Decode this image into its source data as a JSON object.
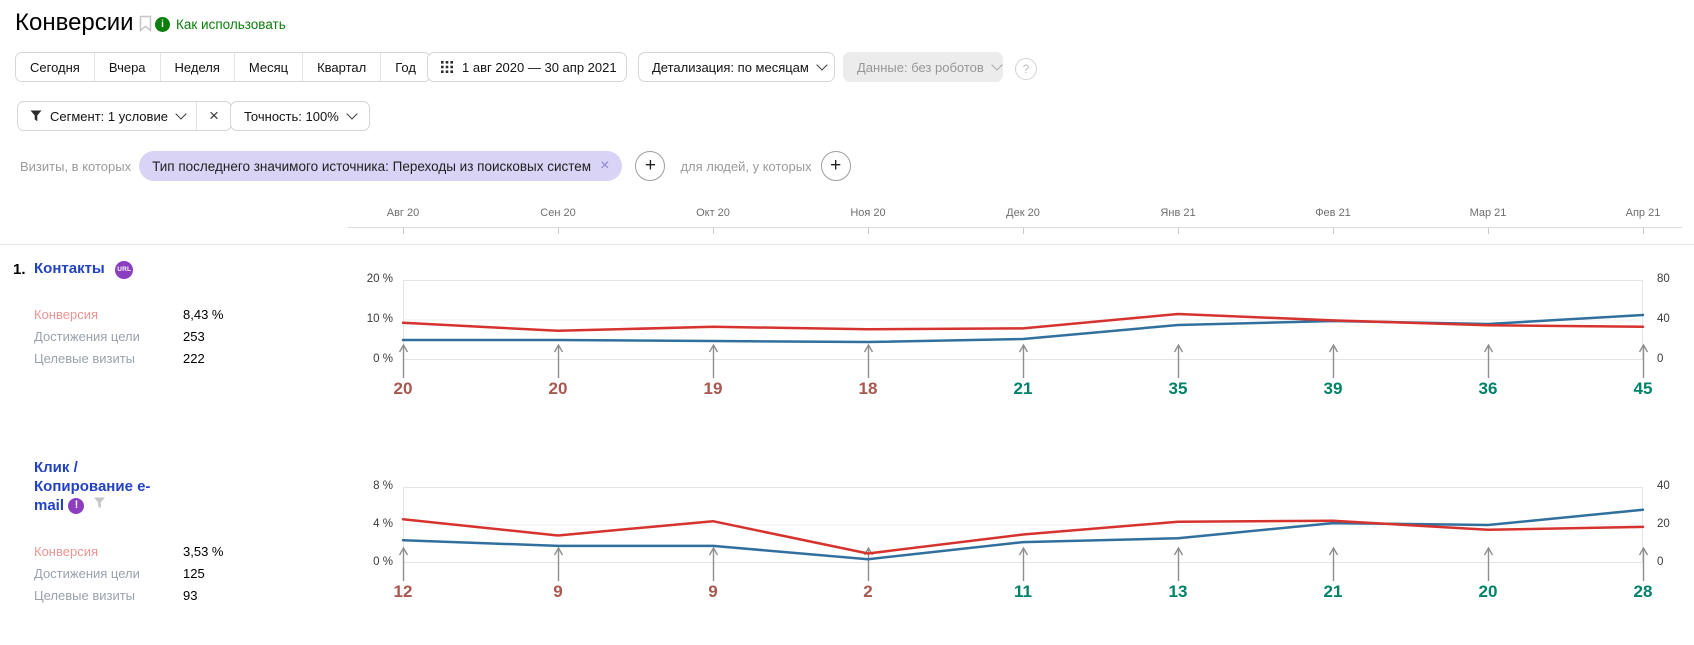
{
  "page": {
    "title": "Конверсии",
    "help_link": "Как использовать"
  },
  "toolbar": {
    "periods": [
      "Сегодня",
      "Вчера",
      "Неделя",
      "Месяц",
      "Квартал",
      "Год"
    ],
    "date_range": "1 авг 2020 — 30 апр 2021",
    "detail": "Детализация: по месяцам",
    "data_mode": "Данные: без роботов",
    "help_mark": "?",
    "segment": "Сегмент: 1 условие",
    "accuracy": "Точность: 100%"
  },
  "filters": {
    "visits_label": "Визиты, в которых",
    "chip": "Тип последнего значимого источника: Переходы из поисковых систем",
    "people_label": "для людей, у которых",
    "add_symbol": "+"
  },
  "goals": [
    {
      "number": "1.",
      "name": "Контакты",
      "badge": "URL",
      "stats": [
        {
          "label": "Конверсия",
          "value": "8,43 %"
        },
        {
          "label": "Достижения цели",
          "value": "253"
        },
        {
          "label": "Целевые визиты",
          "value": "222"
        }
      ]
    },
    {
      "number": "",
      "name": "Клик / Копирование e-mail",
      "badge": "!",
      "stats": [
        {
          "label": "Конверсия",
          "value": "3,53 %"
        },
        {
          "label": "Достижения цели",
          "value": "125"
        },
        {
          "label": "Целевые визиты",
          "value": "93"
        }
      ]
    }
  ],
  "colors": {
    "label_down": "#a8584e",
    "label_up": "#008269",
    "line_red": "#d6332e",
    "line_blue": "#31709e",
    "link_blue": "#2342c0",
    "badge_purple": "#8b3fc0",
    "accent_green": "#0b7e0b",
    "chip_bg": "#d9d4f6",
    "pink_label": "#ea9592",
    "muted_label": "#9aa2ac"
  },
  "chart_data": [
    {
      "type": "line",
      "title": "Контакты",
      "x": [
        "Авг 20",
        "Сен 20",
        "Окт 20",
        "Ноя 20",
        "Дек 20",
        "Янв 21",
        "Фев 21",
        "Мар 21",
        "Апр 21"
      ],
      "left_axis": {
        "max": 20,
        "ticks": [
          "20 %",
          "10 %",
          "0 %"
        ],
        "unit": "%"
      },
      "right_axis": {
        "max": 80,
        "ticks": [
          "80",
          "40",
          "0"
        ]
      },
      "grid": true,
      "legend": "none",
      "series": [
        {
          "name": "Конверсия, %",
          "axis": "left",
          "color": "#d6332e",
          "values": [
            9.3,
            7.3,
            8.3,
            7.7,
            7.9,
            11.5,
            9.9,
            8.7,
            8.3
          ]
        },
        {
          "name": "Достижения цели",
          "axis": "right",
          "color": "#31709e",
          "values": [
            20,
            20,
            19,
            18,
            21,
            35,
            39,
            36,
            45
          ]
        }
      ],
      "point_labels": {
        "values": [
          20,
          20,
          19,
          18,
          21,
          35,
          39,
          36,
          45
        ],
        "trends": [
          "down",
          "down",
          "down",
          "down",
          "up",
          "up",
          "up",
          "up",
          "up"
        ]
      }
    },
    {
      "type": "line",
      "title": "Клик / Копирование e-mail",
      "x": [
        "Авг 20",
        "Сен 20",
        "Окт 20",
        "Ноя 20",
        "Дек 20",
        "Янв 21",
        "Фев 21",
        "Мар 21",
        "Апр 21"
      ],
      "left_axis": {
        "max": 8,
        "ticks": [
          "8 %",
          "4 %",
          "0 %"
        ],
        "unit": "%"
      },
      "right_axis": {
        "max": 40,
        "ticks": [
          "40",
          "20",
          "0"
        ]
      },
      "grid": true,
      "legend": "none",
      "series": [
        {
          "name": "Конверсия, %",
          "axis": "left",
          "color": "#d6332e",
          "values": [
            4.6,
            2.9,
            4.4,
            1.0,
            3.0,
            4.35,
            4.45,
            3.5,
            3.8
          ]
        },
        {
          "name": "Достижения цели",
          "axis": "right",
          "color": "#31709e",
          "values": [
            12,
            9,
            9,
            2,
            11,
            13,
            21,
            20,
            28
          ]
        }
      ],
      "point_labels": {
        "values": [
          12,
          9,
          9,
          2,
          11,
          13,
          21,
          20,
          28
        ],
        "trends": [
          "down",
          "down",
          "down",
          "down",
          "up",
          "up",
          "up",
          "up",
          "up"
        ]
      }
    }
  ]
}
